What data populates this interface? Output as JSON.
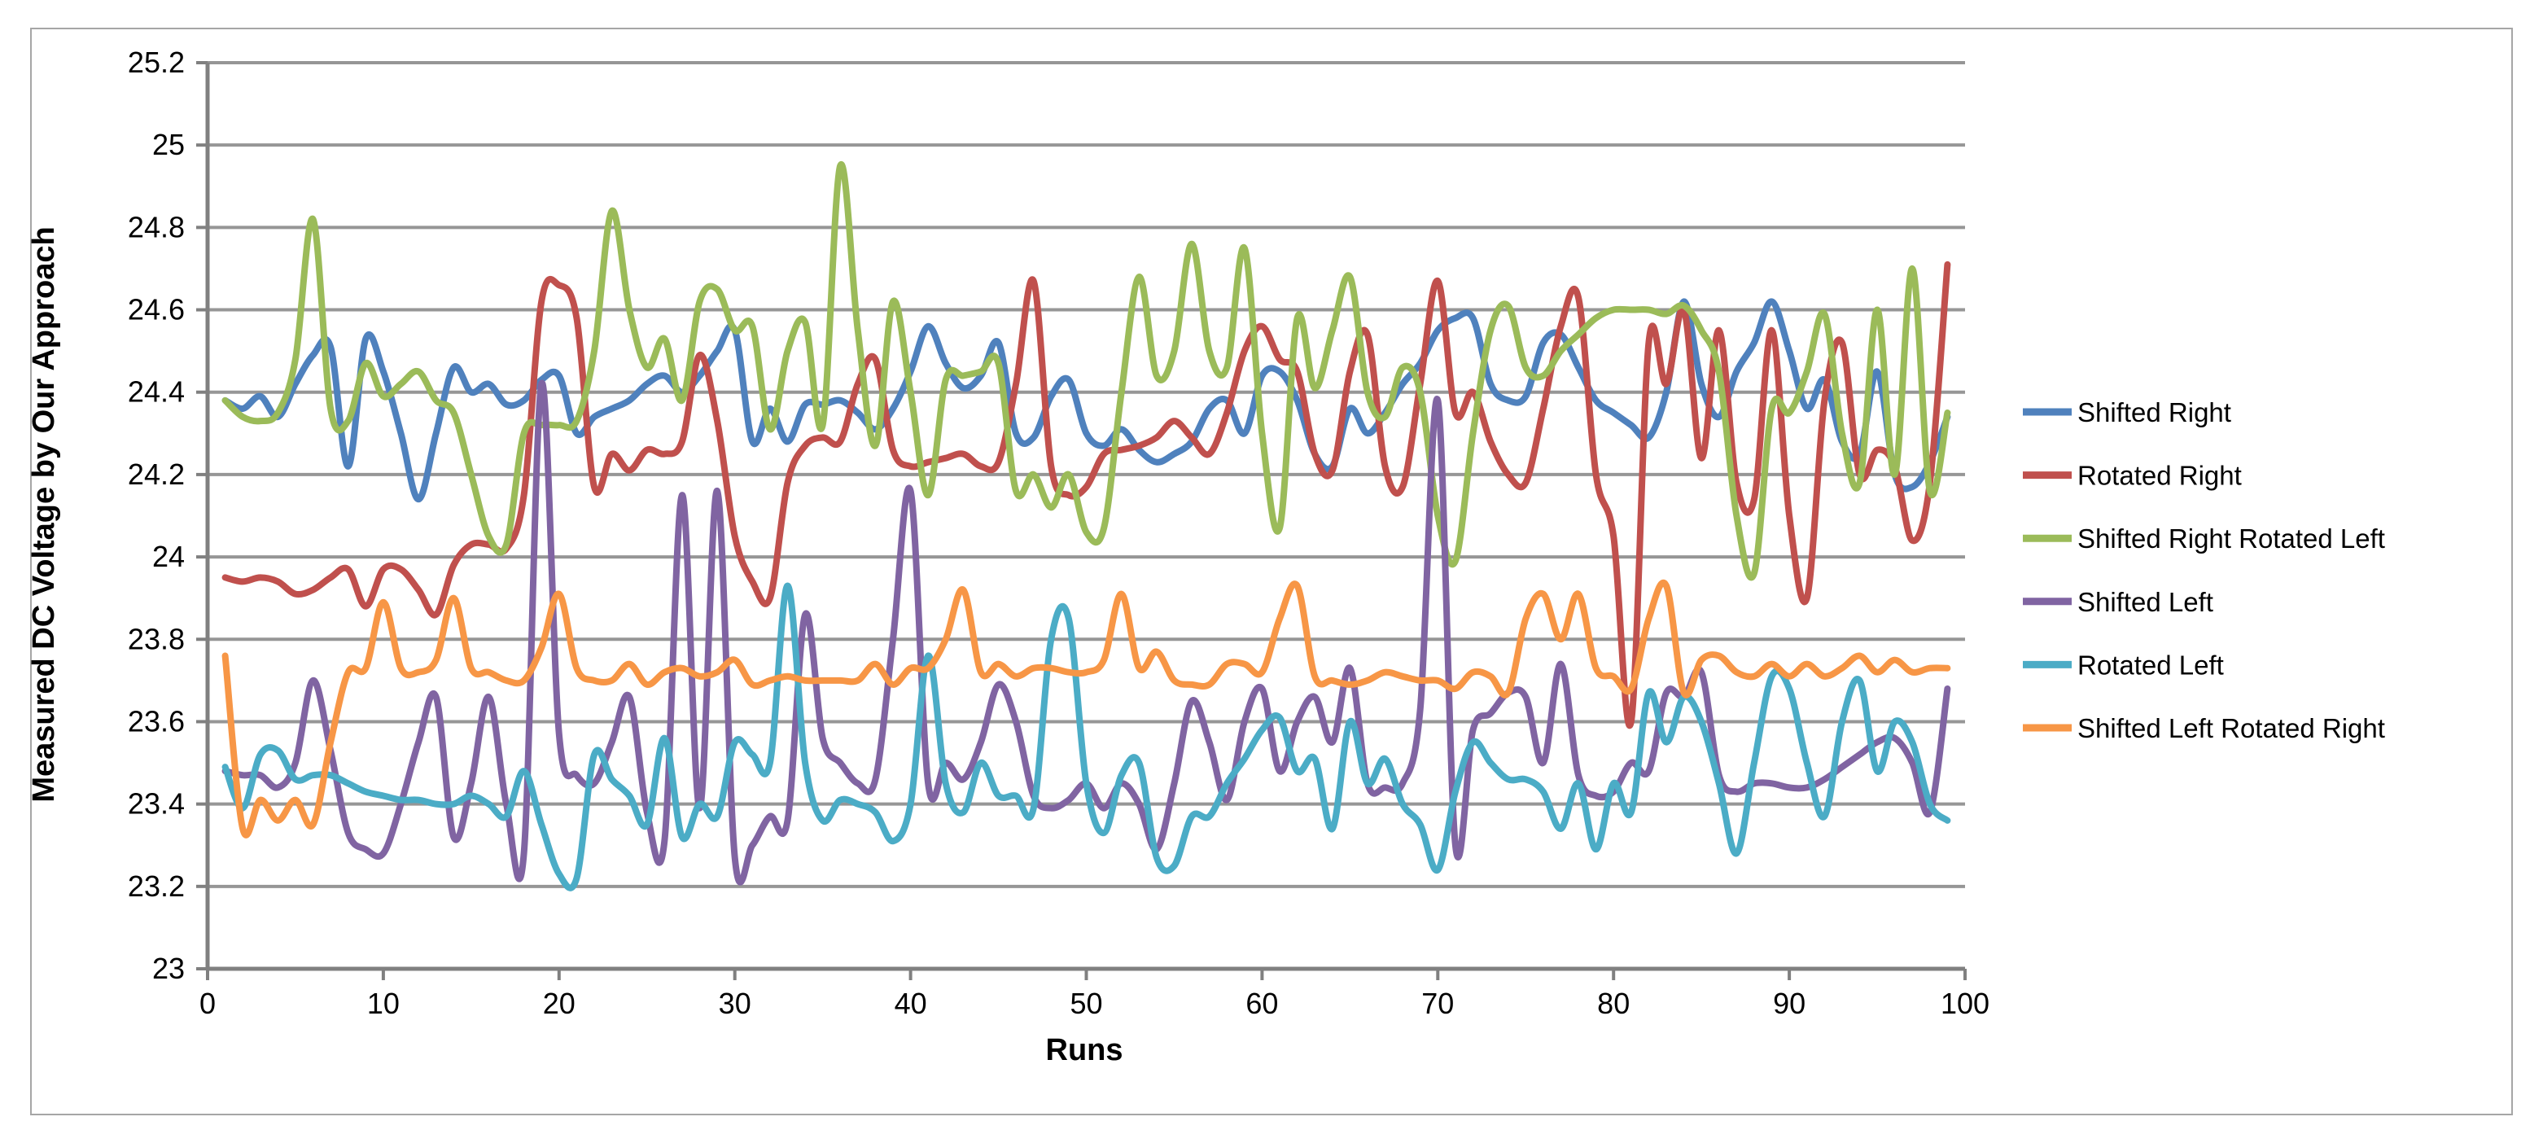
{
  "page": {
    "background_color": "#FFFFFF",
    "chart_border_color": "#A6A6A6"
  },
  "chart_data": {
    "type": "line",
    "title": "",
    "x_label": "Runs",
    "y_label": "Measured DC Voltage by Our Approach",
    "grid": true,
    "smooth": true,
    "legend_position": "right",
    "grid_color": "#969696",
    "axis_color": "#808080",
    "x_axis": {
      "min": 0,
      "max": 100,
      "tick_step": 10,
      "tick_labels": [
        "0",
        "10",
        "20",
        "30",
        "40",
        "50",
        "60",
        "70",
        "80",
        "90",
        "100"
      ]
    },
    "y_axis": {
      "min": 23,
      "max": 25.2,
      "tick_step": 0.2,
      "tick_labels": [
        "23",
        "23.2",
        "23.4",
        "23.6",
        "23.8",
        "24",
        "24.2",
        "24.4",
        "24.6",
        "24.8",
        "25",
        "25.2"
      ]
    },
    "x_start": 1,
    "x_step": 1,
    "series": [
      {
        "name": "Shifted Right",
        "color": "#4F81BD",
        "values": [
          24.38,
          24.36,
          24.39,
          24.34,
          24.42,
          24.49,
          24.51,
          24.22,
          24.53,
          24.45,
          24.3,
          24.14,
          24.3,
          24.46,
          24.4,
          24.42,
          24.37,
          24.38,
          24.43,
          24.44,
          24.3,
          24.34,
          24.36,
          24.38,
          24.42,
          24.44,
          24.4,
          24.44,
          24.5,
          24.55,
          24.28,
          24.36,
          24.28,
          24.37,
          24.37,
          24.38,
          24.35,
          24.31,
          24.36,
          24.45,
          24.56,
          24.47,
          24.41,
          24.44,
          24.52,
          24.3,
          24.29,
          24.39,
          24.43,
          24.3,
          24.27,
          24.31,
          24.26,
          24.23,
          24.25,
          24.28,
          24.36,
          24.38,
          24.3,
          24.44,
          24.45,
          24.38,
          24.25,
          24.22,
          24.36,
          24.3,
          24.35,
          24.42,
          24.47,
          24.55,
          24.58,
          24.58,
          24.42,
          24.38,
          24.39,
          24.52,
          24.54,
          24.46,
          24.38,
          24.35,
          24.32,
          24.29,
          24.4,
          24.62,
          24.42,
          24.34,
          24.45,
          24.52,
          24.62,
          24.5,
          24.36,
          24.43,
          24.28,
          24.25,
          24.45,
          24.2,
          24.17,
          24.23,
          24.34
        ]
      },
      {
        "name": "Rotated Right",
        "color": "#C0504D",
        "values": [
          23.95,
          23.94,
          23.95,
          23.94,
          23.91,
          23.92,
          23.95,
          23.97,
          23.88,
          23.97,
          23.97,
          23.92,
          23.86,
          23.98,
          24.03,
          24.03,
          24.02,
          24.15,
          24.62,
          24.66,
          24.58,
          24.17,
          24.25,
          24.21,
          24.26,
          24.25,
          24.28,
          24.49,
          24.33,
          24.05,
          23.94,
          23.9,
          24.18,
          24.27,
          24.29,
          24.28,
          24.42,
          24.48,
          24.26,
          24.22,
          24.23,
          24.24,
          24.25,
          24.22,
          24.23,
          24.42,
          24.67,
          24.22,
          24.15,
          24.17,
          24.25,
          24.26,
          24.27,
          24.29,
          24.33,
          24.29,
          24.25,
          24.35,
          24.5,
          24.56,
          24.48,
          24.45,
          24.25,
          24.21,
          24.45,
          24.54,
          24.22,
          24.17,
          24.42,
          24.67,
          24.35,
          24.4,
          24.28,
          24.2,
          24.18,
          24.36,
          24.56,
          24.63,
          24.2,
          24.05,
          23.6,
          24.52,
          24.42,
          24.6,
          24.24,
          24.55,
          24.18,
          24.14,
          24.55,
          24.1,
          23.9,
          24.38,
          24.52,
          24.2,
          24.26,
          24.22,
          24.04,
          24.18,
          24.71
        ]
      },
      {
        "name": "Shifted Right Rotated Left",
        "color": "#9BBB59",
        "values": [
          24.38,
          24.34,
          24.33,
          24.35,
          24.48,
          24.82,
          24.36,
          24.33,
          24.47,
          24.39,
          24.42,
          24.45,
          24.38,
          24.35,
          24.2,
          24.05,
          24.03,
          24.3,
          24.32,
          24.32,
          24.33,
          24.5,
          24.84,
          24.6,
          24.46,
          24.53,
          24.38,
          24.62,
          24.65,
          24.55,
          24.56,
          24.31,
          24.5,
          24.57,
          24.32,
          24.95,
          24.55,
          24.27,
          24.62,
          24.4,
          24.15,
          24.43,
          24.44,
          24.45,
          24.47,
          24.16,
          24.2,
          24.12,
          24.2,
          24.06,
          24.07,
          24.4,
          24.68,
          24.44,
          24.5,
          24.76,
          24.5,
          24.46,
          24.75,
          24.3,
          24.07,
          24.58,
          24.41,
          24.55,
          24.68,
          24.4,
          24.34,
          24.46,
          24.4,
          24.1,
          23.99,
          24.3,
          24.55,
          24.61,
          24.46,
          24.44,
          24.5,
          24.54,
          24.58,
          24.6,
          24.6,
          24.6,
          24.59,
          24.61,
          24.55,
          24.45,
          24.1,
          23.96,
          24.36,
          24.35,
          24.45,
          24.59,
          24.3,
          24.18,
          24.6,
          24.2,
          24.7,
          24.16,
          24.35
        ]
      },
      {
        "name": "Shifted Left",
        "color": "#8064A2",
        "values": [
          23.48,
          23.47,
          23.47,
          23.44,
          23.5,
          23.7,
          23.53,
          23.33,
          23.29,
          23.28,
          23.4,
          23.55,
          23.66,
          23.32,
          23.45,
          23.66,
          23.4,
          23.28,
          24.42,
          23.57,
          23.47,
          23.45,
          23.55,
          23.66,
          23.38,
          23.31,
          24.15,
          23.39,
          24.16,
          23.27,
          23.3,
          23.37,
          23.36,
          23.86,
          23.56,
          23.5,
          23.45,
          23.46,
          23.8,
          24.16,
          23.45,
          23.5,
          23.46,
          23.55,
          23.69,
          23.6,
          23.42,
          23.39,
          23.41,
          23.45,
          23.39,
          23.45,
          23.4,
          23.29,
          23.45,
          23.65,
          23.55,
          23.41,
          23.6,
          23.68,
          23.48,
          23.6,
          23.66,
          23.55,
          23.73,
          23.45,
          23.44,
          23.45,
          23.63,
          24.38,
          23.3,
          23.58,
          23.62,
          23.67,
          23.66,
          23.5,
          23.74,
          23.47,
          23.42,
          23.43,
          23.5,
          23.48,
          23.67,
          23.66,
          23.72,
          23.47,
          23.43,
          23.45,
          23.45,
          23.44,
          23.44,
          23.46,
          23.49,
          23.52,
          23.55,
          23.56,
          23.5,
          23.38,
          23.68
        ]
      },
      {
        "name": "Rotated Left",
        "color": "#4BACC6",
        "values": [
          23.49,
          23.39,
          23.52,
          23.53,
          23.46,
          23.47,
          23.47,
          23.45,
          23.43,
          23.42,
          23.41,
          23.41,
          23.4,
          23.4,
          23.42,
          23.4,
          23.37,
          23.48,
          23.35,
          23.23,
          23.22,
          23.52,
          23.46,
          23.42,
          23.35,
          23.56,
          23.32,
          23.4,
          23.37,
          23.55,
          23.52,
          23.5,
          23.93,
          23.5,
          23.36,
          23.41,
          23.4,
          23.38,
          23.31,
          23.4,
          23.76,
          23.45,
          23.38,
          23.5,
          23.42,
          23.42,
          23.39,
          23.8,
          23.85,
          23.45,
          23.33,
          23.47,
          23.5,
          23.27,
          23.25,
          23.37,
          23.37,
          23.45,
          23.51,
          23.58,
          23.61,
          23.48,
          23.51,
          23.34,
          23.6,
          23.45,
          23.51,
          23.4,
          23.35,
          23.24,
          23.43,
          23.55,
          23.5,
          23.46,
          23.46,
          23.43,
          23.34,
          23.45,
          23.29,
          23.45,
          23.38,
          23.67,
          23.55,
          23.66,
          23.6,
          23.45,
          23.28,
          23.5,
          23.71,
          23.68,
          23.5,
          23.37,
          23.6,
          23.7,
          23.48,
          23.6,
          23.55,
          23.4,
          23.36
        ]
      },
      {
        "name": "Shifted Left Rotated Right",
        "color": "#F79646",
        "values": [
          23.76,
          23.34,
          23.41,
          23.36,
          23.41,
          23.35,
          23.55,
          23.72,
          23.73,
          23.89,
          23.73,
          23.72,
          23.75,
          23.9,
          23.73,
          23.72,
          23.7,
          23.7,
          23.78,
          23.91,
          23.73,
          23.7,
          23.7,
          23.74,
          23.69,
          23.72,
          23.73,
          23.71,
          23.72,
          23.75,
          23.69,
          23.7,
          23.71,
          23.7,
          23.7,
          23.7,
          23.7,
          23.74,
          23.69,
          23.73,
          23.73,
          23.8,
          23.92,
          23.72,
          23.74,
          23.71,
          23.73,
          23.73,
          23.72,
          23.72,
          23.75,
          23.91,
          23.73,
          23.77,
          23.7,
          23.69,
          23.69,
          23.74,
          23.74,
          23.72,
          23.85,
          23.93,
          23.71,
          23.7,
          23.69,
          23.7,
          23.72,
          23.71,
          23.7,
          23.7,
          23.68,
          23.72,
          23.71,
          23.67,
          23.85,
          23.91,
          23.8,
          23.91,
          23.73,
          23.71,
          23.68,
          23.85,
          23.93,
          23.67,
          23.75,
          23.76,
          23.72,
          23.71,
          23.74,
          23.71,
          23.74,
          23.71,
          23.73,
          23.76,
          23.72,
          23.75,
          23.72,
          23.73,
          23.73
        ]
      }
    ]
  }
}
